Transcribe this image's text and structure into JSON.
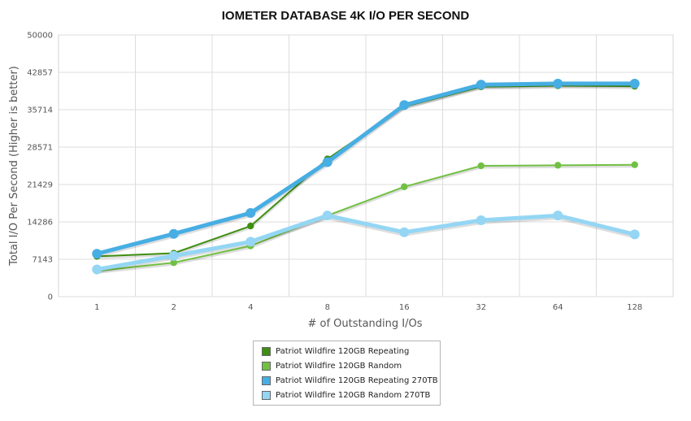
{
  "chart_data": {
    "type": "line",
    "title": "IOMETER DATABASE 4K I/O PER SECOND",
    "xlabel": "# of Outstanding I/Os",
    "ylabel": "Total I/O Per Second (Higher is better)",
    "categories": [
      "1",
      "2",
      "4",
      "8",
      "16",
      "32",
      "64",
      "128"
    ],
    "ylim": [
      0,
      50000
    ],
    "yticks": [
      "0",
      "7143",
      "14286",
      "21429",
      "28571",
      "35714",
      "42857",
      "50000"
    ],
    "grid": true,
    "legend_position": "bottom",
    "series": [
      {
        "name": "Patriot Wildfire 120GB Repeating",
        "color": "#3f8f12",
        "values": [
          7700,
          8300,
          13500,
          26300,
          36300,
          40100,
          40300,
          40200
        ]
      },
      {
        "name": "Patriot Wildfire 120GB Random",
        "color": "#72c043",
        "values": [
          4900,
          6500,
          9700,
          15500,
          21000,
          25000,
          25100,
          25200
        ]
      },
      {
        "name": "Patriot Wildfire 120GB Repeating 270TB",
        "color": "#47aee3",
        "values": [
          8200,
          12000,
          16000,
          25700,
          36600,
          40500,
          40700,
          40700
        ]
      },
      {
        "name": "Patriot Wildfire 120GB Random 270TB",
        "color": "#94d6f4",
        "values": [
          5200,
          7800,
          10500,
          15500,
          12300,
          14600,
          15500,
          11900
        ]
      }
    ]
  }
}
